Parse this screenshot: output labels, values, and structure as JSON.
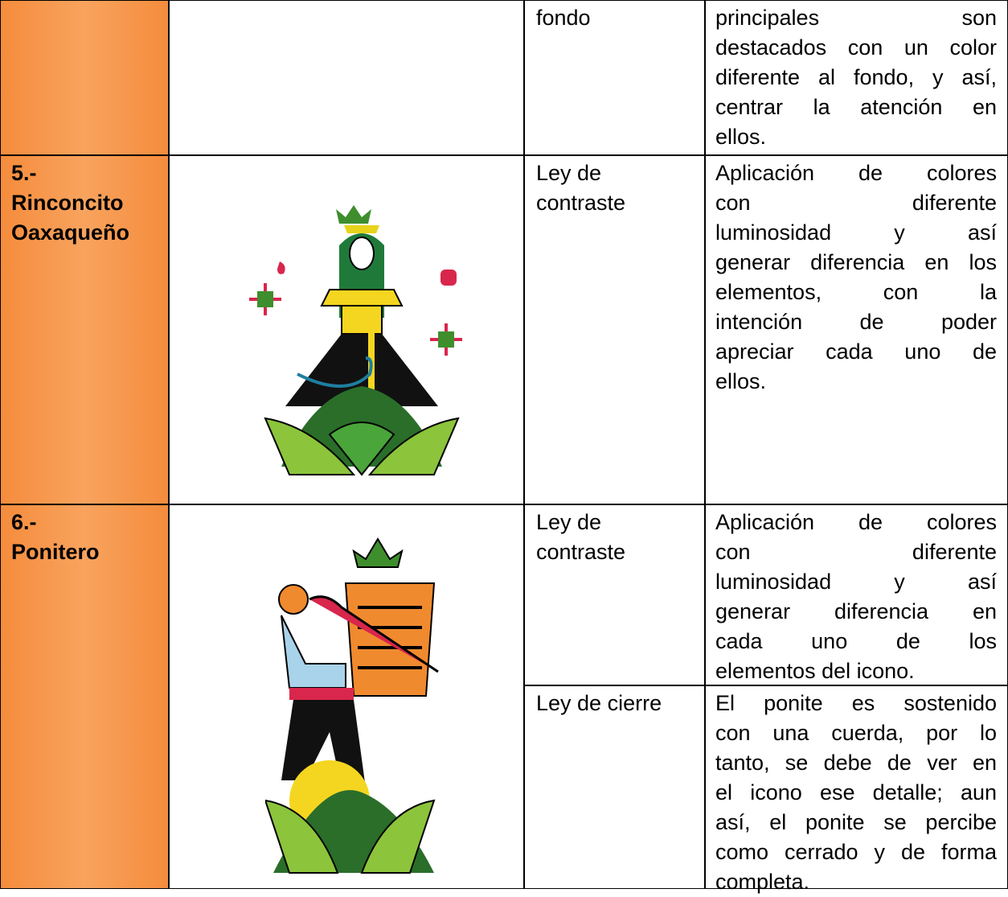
{
  "table": {
    "rows": [
      {
        "law": "fondo",
        "description": [
          "principales son",
          "destacados con un color",
          "diferente al fondo, y así,",
          "centrar la atención en",
          "ellos."
        ]
      },
      {
        "name": [
          "5.-",
          "Rinconcito",
          "Oaxaqueño"
        ],
        "law": [
          "Ley de",
          "contraste"
        ],
        "description": [
          "Aplicación de colores",
          "con diferente",
          "luminosidad y así",
          "generar diferencia en los",
          "elementos, con la",
          "intención de poder",
          "apreciar cada uno de",
          "ellos."
        ]
      },
      {
        "name": [
          "6.-",
          "Ponitero"
        ],
        "items": [
          {
            "law": [
              "Ley de",
              "contraste"
            ],
            "description": [
              "Aplicación de colores",
              "con diferente",
              "luminosidad y así",
              "generar diferencia en",
              "cada uno de los",
              "elementos del icono."
            ]
          },
          {
            "law": [
              "Ley de cierre"
            ],
            "description": [
              "El ponite es sostenido",
              "con una cuerda, por lo",
              "tanto, se debe de ver en",
              "el icono ese detalle; aun",
              "así, el ponite se percibe",
              "como cerrado y de forma",
              "completa."
            ]
          }
        ]
      }
    ]
  }
}
